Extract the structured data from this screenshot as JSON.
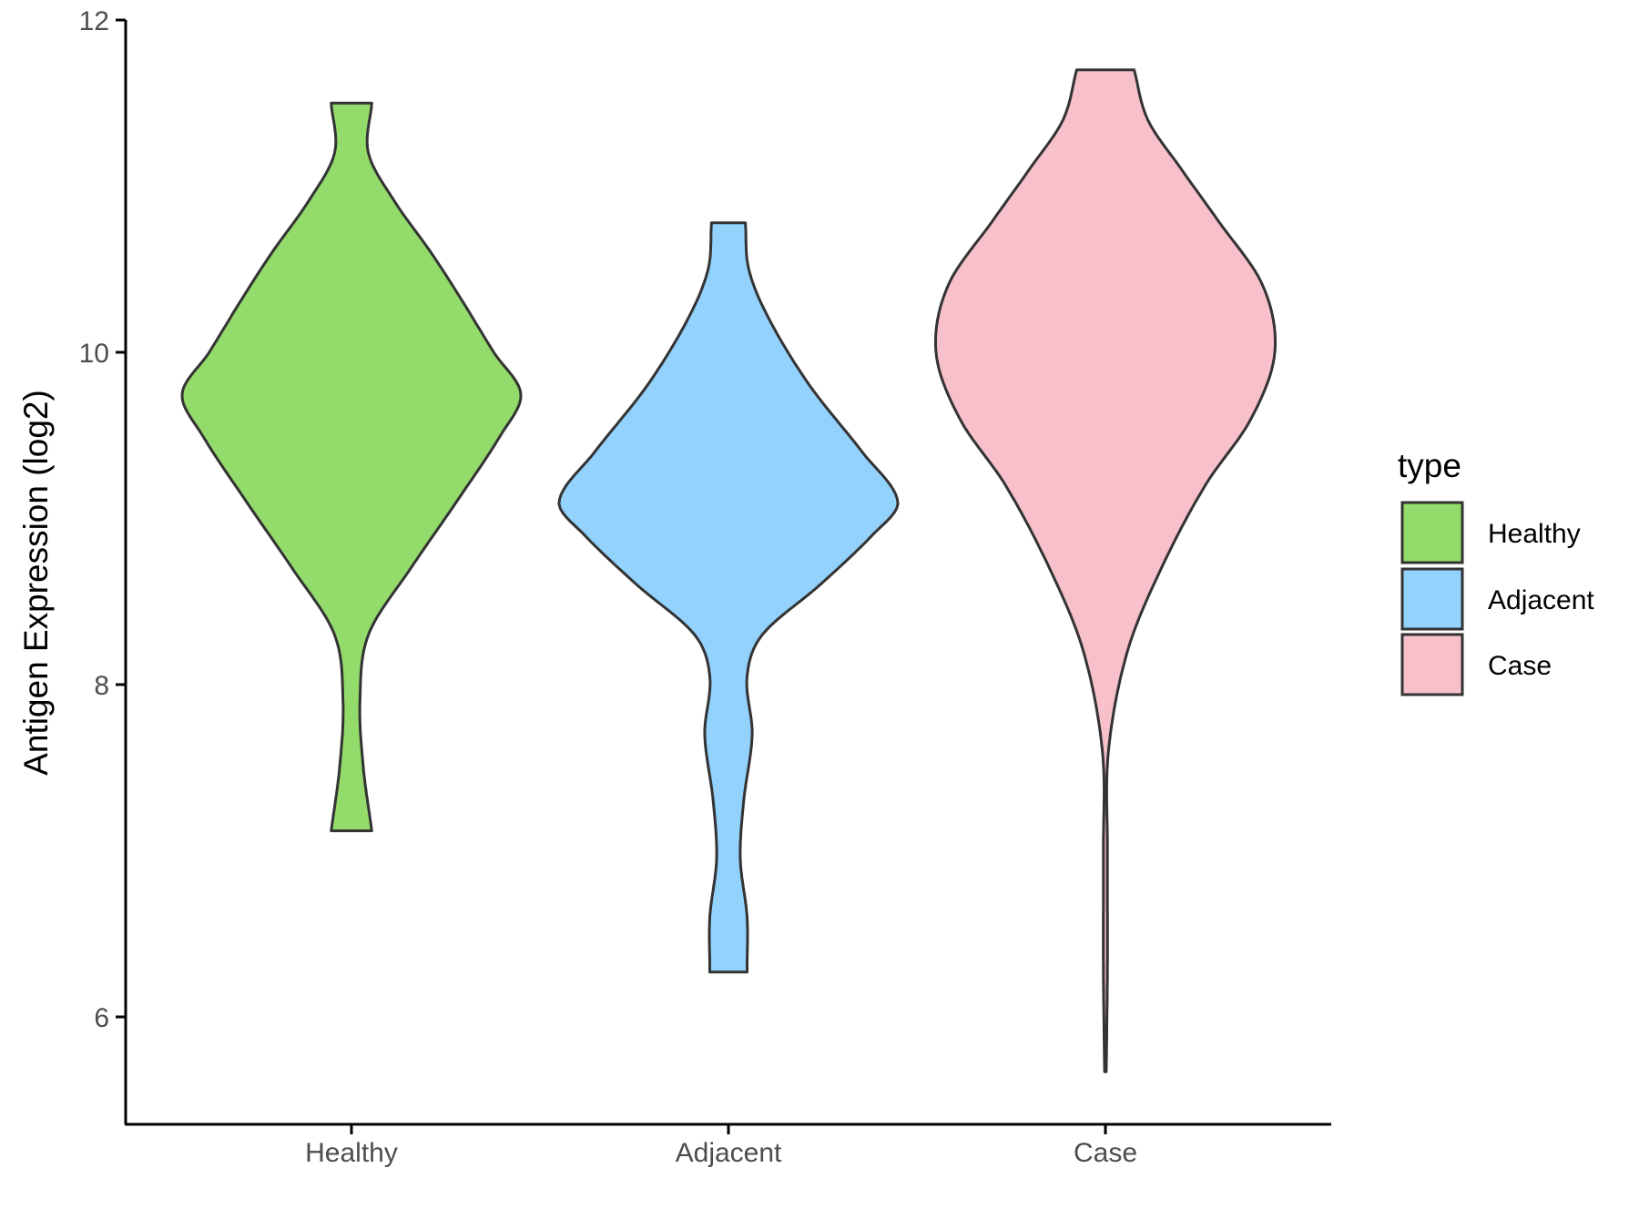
{
  "chart_data": {
    "type": "violin",
    "ylabel": "Antigen Expression (log2)",
    "xlabel": "",
    "ylim": [
      5.35,
      12
    ],
    "yticks": [
      6,
      8,
      10,
      12
    ],
    "categories": [
      "Healthy",
      "Adjacent",
      "Case"
    ],
    "legend": {
      "title": "type",
      "position": "right",
      "entries": [
        "Healthy",
        "Adjacent",
        "Case"
      ]
    },
    "grid": false,
    "series": [
      {
        "name": "Healthy",
        "color": "#93DB6A",
        "min": 7.12,
        "max": 11.5,
        "density": [
          [
            7.12,
            0.12
          ],
          [
            7.5,
            0.07
          ],
          [
            7.9,
            0.05
          ],
          [
            8.3,
            0.1
          ],
          [
            8.7,
            0.35
          ],
          [
            9.1,
            0.62
          ],
          [
            9.5,
            0.88
          ],
          [
            9.75,
            1.0
          ],
          [
            10.0,
            0.84
          ],
          [
            10.3,
            0.66
          ],
          [
            10.6,
            0.47
          ],
          [
            10.9,
            0.26
          ],
          [
            11.2,
            0.1
          ],
          [
            11.5,
            0.12
          ]
        ]
      },
      {
        "name": "Adjacent",
        "color": "#92D2FD",
        "min": 6.27,
        "max": 10.78,
        "density": [
          [
            6.27,
            0.11
          ],
          [
            6.6,
            0.11
          ],
          [
            6.95,
            0.07
          ],
          [
            7.3,
            0.09
          ],
          [
            7.7,
            0.14
          ],
          [
            8.05,
            0.11
          ],
          [
            8.3,
            0.2
          ],
          [
            8.6,
            0.54
          ],
          [
            8.9,
            0.85
          ],
          [
            9.1,
            1.0
          ],
          [
            9.4,
            0.79
          ],
          [
            9.8,
            0.48
          ],
          [
            10.2,
            0.24
          ],
          [
            10.5,
            0.12
          ],
          [
            10.78,
            0.1
          ]
        ]
      },
      {
        "name": "Case",
        "color": "#F7C0CB",
        "min": 5.67,
        "max": 11.7,
        "density": [
          [
            5.67,
            0.005
          ],
          [
            6.3,
            0.012
          ],
          [
            7.0,
            0.012
          ],
          [
            7.6,
            0.018
          ],
          [
            8.2,
            0.13
          ],
          [
            8.7,
            0.33
          ],
          [
            9.2,
            0.59
          ],
          [
            9.6,
            0.86
          ],
          [
            10.0,
            1.0
          ],
          [
            10.4,
            0.93
          ],
          [
            10.8,
            0.66
          ],
          [
            11.1,
            0.45
          ],
          [
            11.4,
            0.25
          ],
          [
            11.7,
            0.17
          ]
        ]
      }
    ]
  }
}
